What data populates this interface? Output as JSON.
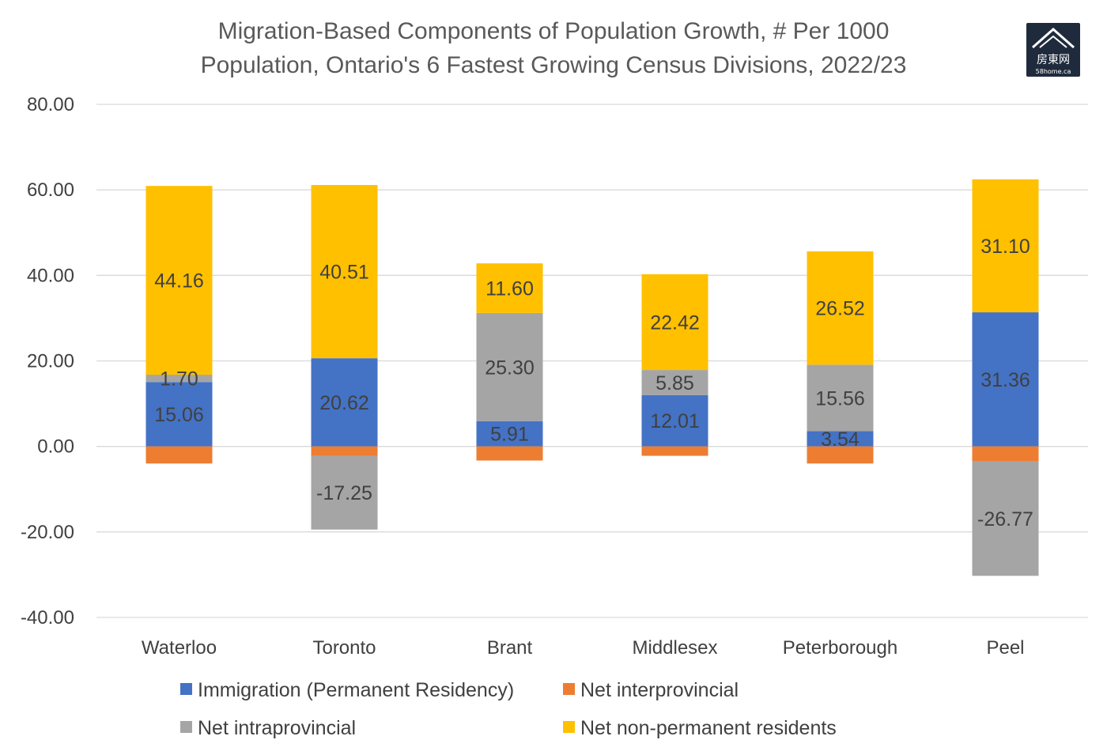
{
  "logo": {
    "main": "房東网",
    "sub": "58home.ca",
    "bg": "#1f2b3d"
  },
  "chart_data": {
    "type": "bar",
    "stacked": true,
    "title": "Migration-Based Components of Population Growth, # Per 1000 Population, Ontario's 6 Fastest Growing Census Divisions, 2022/23",
    "title_lines": [
      "Migration-Based Components of Population Growth, # Per 1000",
      "Population, Ontario's 6 Fastest Growing Census Divisions, 2022/23"
    ],
    "categories": [
      "Waterloo",
      "Toronto",
      "Brant",
      "Middlesex",
      "Peterborough",
      "Peel"
    ],
    "ylim": [
      -40,
      80
    ],
    "yticks": [
      80,
      60,
      40,
      20,
      0,
      -20,
      -40
    ],
    "ytick_labels": [
      "80.00",
      "60.00",
      "40.00",
      "20.00",
      "0.00",
      "-20.00",
      "-40.00"
    ],
    "grid": true,
    "legend_position": "bottom",
    "series": [
      {
        "name": "Immigration (Permanent Residency)",
        "color": "#4472c4",
        "values": [
          15.06,
          20.62,
          5.91,
          12.01,
          3.54,
          31.36
        ],
        "labels": [
          "15.06",
          "20.62",
          "5.91",
          "12.01",
          "3.54",
          "31.36"
        ]
      },
      {
        "name": "Net interprovincial",
        "color": "#ed7d31",
        "values": [
          -4.0,
          -2.2,
          -3.3,
          -2.2,
          -4.0,
          -3.5
        ],
        "labels": [
          "",
          "",
          "",
          "",
          "",
          ""
        ]
      },
      {
        "name": "Net intraprovincial",
        "color": "#a5a5a5",
        "values": [
          1.7,
          -17.25,
          25.3,
          5.85,
          15.56,
          -26.77
        ],
        "labels": [
          "1.70",
          "-17.25",
          "25.30",
          "5.85",
          "15.56",
          "-26.77"
        ]
      },
      {
        "name": "Net non-permanent residents",
        "color": "#ffc000",
        "values": [
          44.16,
          40.51,
          11.6,
          22.42,
          26.52,
          31.1
        ],
        "labels": [
          "44.16",
          "40.51",
          "11.60",
          "22.42",
          "26.52",
          "31.10"
        ]
      }
    ]
  }
}
